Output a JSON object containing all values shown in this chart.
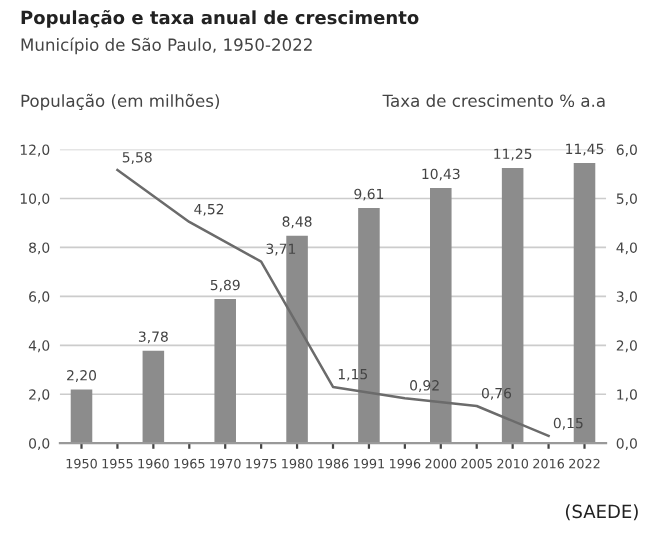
{
  "chart_data": {
    "type": "bar",
    "title": "População e taxa anual de crescimento",
    "subtitle": "Município de São Paulo, 1950-2022",
    "ylabel": "População (em milhões)",
    "y2label": "Taxa de crescimento % a.a",
    "categories": [
      "1950",
      "1955",
      "1960",
      "1965",
      "1970",
      "1975",
      "1980",
      "1986",
      "1991",
      "1996",
      "2000",
      "2005",
      "2010",
      "2016",
      "2022"
    ],
    "series": [
      {
        "color": "#8c8c8c",
        "values": [
          2.2,
          null,
          3.78,
          null,
          5.89,
          null,
          8.48,
          null,
          9.61,
          null,
          10.43,
          null,
          11.25,
          null,
          11.45
        ],
        "value_labels": [
          "2,20",
          null,
          "3,78",
          null,
          "5,89",
          null,
          "8,48",
          null,
          "9,61",
          null,
          "10,43",
          null,
          "11,25",
          null,
          "11,45"
        ]
      },
      {
        "type": "line",
        "axis": "y2",
        "color": "#6b6b6b",
        "values": [
          null,
          5.58,
          null,
          4.52,
          null,
          3.71,
          null,
          1.15,
          null,
          0.92,
          null,
          0.76,
          null,
          0.15,
          null
        ],
        "value_labels": [
          null,
          "5,58",
          null,
          "4,52",
          null,
          "3,71",
          null,
          "1,15",
          null,
          "0,92",
          null,
          "0,76",
          null,
          "0,15",
          null
        ]
      }
    ],
    "ylim": [
      0,
      12
    ],
    "yticks": [
      {
        "value": 0,
        "label": "0,0"
      },
      {
        "value": 2,
        "label": "2,0"
      },
      {
        "value": 4,
        "label": "4,0"
      },
      {
        "value": 6,
        "label": "6,0"
      },
      {
        "value": 8,
        "label": "8,0"
      },
      {
        "value": 10,
        "label": "10,0"
      },
      {
        "value": 12,
        "label": "12,0"
      }
    ],
    "y2lim": [
      0,
      6
    ],
    "y2ticks": [
      {
        "value": 0,
        "label": "0,0"
      },
      {
        "value": 1,
        "label": "1,0"
      },
      {
        "value": 2,
        "label": "2,0"
      },
      {
        "value": 3,
        "label": "3,0"
      },
      {
        "value": 4,
        "label": "4,0"
      },
      {
        "value": 5,
        "label": "5,0"
      },
      {
        "value": 6,
        "label": "6,0"
      }
    ],
    "grid": "y",
    "legend": false,
    "marker": "none",
    "line_style": "solid",
    "annotations": [
      "(SAEDE)"
    ]
  }
}
